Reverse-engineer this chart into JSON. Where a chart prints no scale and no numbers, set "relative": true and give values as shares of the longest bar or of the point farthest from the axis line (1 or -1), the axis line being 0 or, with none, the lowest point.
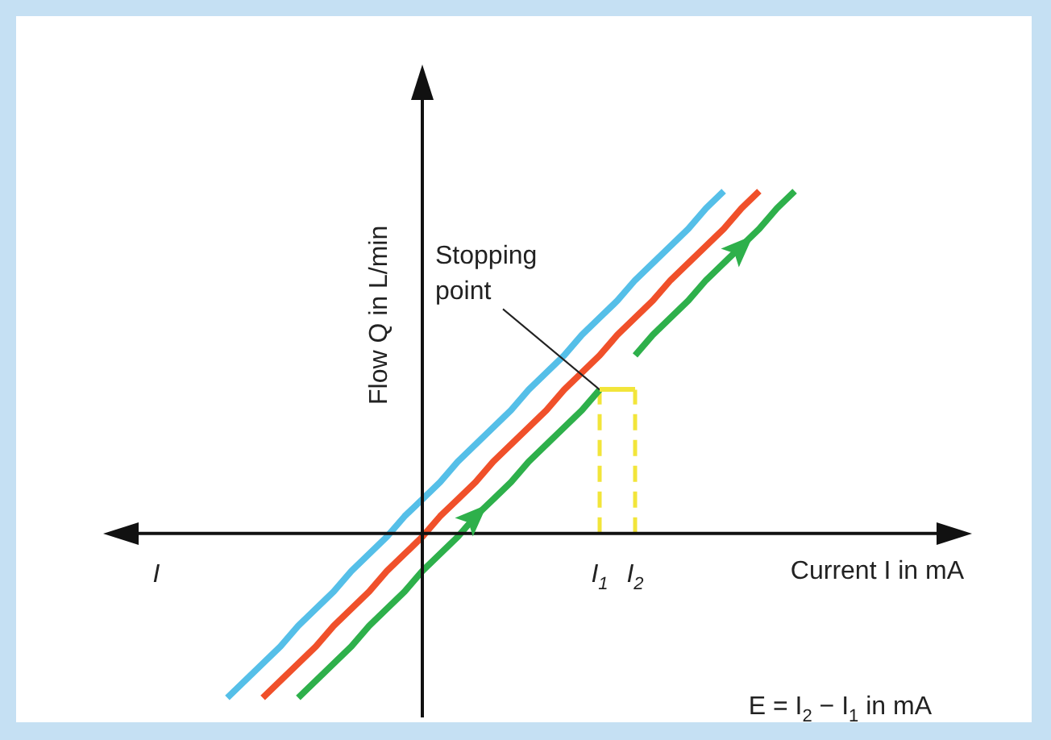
{
  "chart_data": {
    "type": "line",
    "relative": true,
    "xlabel": "Current I in mA",
    "ylabel": "Flow Q in L/min",
    "categories": [
      null,
      null,
      null,
      "I",
      null,
      null,
      null,
      null,
      null,
      null,
      null,
      null,
      null,
      null,
      null,
      null,
      null,
      null,
      null,
      null,
      null,
      null,
      null,
      null,
      null,
      null,
      null,
      null,
      "I$_{1}$",
      null,
      "I$_{2}$",
      null,
      null,
      null,
      null,
      null,
      null,
      null,
      null,
      null,
      null,
      null,
      null,
      null,
      null,
      null,
      null,
      null,
      null,
      null
    ],
    "series": [
      {
        "color": "#55bfe8",
        "values": [
          null,
          null,
          null,
          null,
          null,
          null,
          null,
          -0.48,
          -0.43,
          -0.38,
          -0.33,
          -0.27,
          -0.22,
          -0.17,
          -0.11,
          -0.06,
          -0.01,
          0.05,
          0.1,
          0.15,
          0.21,
          0.26,
          0.31,
          0.36,
          0.42,
          0.47,
          0.52,
          0.58,
          0.63,
          0.68,
          0.74,
          0.79,
          0.84,
          0.89,
          0.95,
          1,
          null,
          null,
          null,
          null,
          null,
          null,
          null,
          null,
          null,
          null,
          null,
          null,
          null,
          null
        ]
      },
      {
        "color": "#f0502a",
        "values": [
          null,
          null,
          null,
          null,
          null,
          null,
          null,
          null,
          null,
          -0.48,
          -0.43,
          -0.38,
          -0.33,
          -0.27,
          -0.22,
          -0.17,
          -0.11,
          -0.06,
          -0.01,
          0.05,
          0.1,
          0.15,
          0.21,
          0.26,
          0.31,
          0.36,
          0.42,
          0.47,
          0.52,
          0.58,
          0.63,
          0.68,
          0.74,
          0.79,
          0.84,
          0.89,
          0.95,
          1,
          null,
          null,
          null,
          null,
          null,
          null,
          null,
          null,
          null,
          null,
          null,
          null
        ]
      },
      {
        "color": "#2eb04b",
        "values": [
          null,
          null,
          null,
          null,
          null,
          null,
          null,
          null,
          null,
          null,
          null,
          -0.48,
          -0.43,
          -0.38,
          -0.33,
          -0.27,
          -0.22,
          -0.17,
          -0.11,
          -0.06,
          -0.01,
          0.05,
          0.1,
          0.15,
          0.21,
          0.26,
          0.31,
          0.36,
          0.42,
          null,
          0.52,
          0.58,
          0.63,
          0.68,
          0.74,
          0.79,
          0.84,
          0.89,
          0.95,
          1,
          null,
          null,
          null,
          null,
          null,
          null,
          null,
          null,
          null,
          null
        ]
      }
    ],
    "ref_lines": [
      {
        "axis": "x",
        "value": "I$_{1}$",
        "color": "#f2e53a",
        "line_style": "dashed"
      },
      {
        "axis": "x",
        "value": "I$_{2}$",
        "color": "#f2e53a",
        "line_style": "dashed"
      }
    ],
    "line_style": "solid",
    "annotations": [
      {
        "text": "Stopping point",
        "x": "I$_{1}$",
        "y": 0.42
      },
      "E = I$_{2}$ − I$_{1}$ in mA"
    ]
  }
}
